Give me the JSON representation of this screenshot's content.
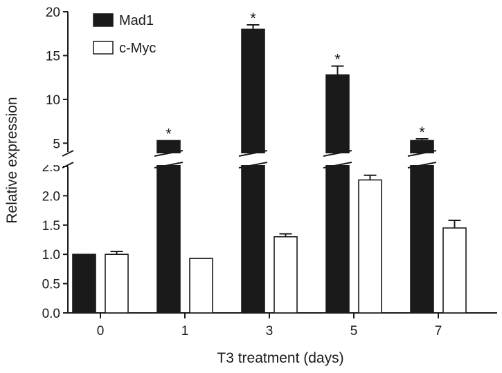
{
  "chart_data": {
    "type": "bar",
    "title": "",
    "xlabel": "T3 treatment (days)",
    "ylabel": "Relative expression",
    "categories": [
      "0",
      "1",
      "3",
      "5",
      "7"
    ],
    "series": [
      {
        "name": "Mad1",
        "fill": "#1a1a1a",
        "values": [
          1.0,
          5.3,
          18.0,
          12.8,
          5.3
        ],
        "errors": [
          0.0,
          0.0,
          0.5,
          1.0,
          0.2
        ],
        "significance": [
          "",
          "*",
          "*",
          "*",
          "*"
        ]
      },
      {
        "name": "c-Myc",
        "fill": "#ffffff",
        "values": [
          1.0,
          0.93,
          1.3,
          2.27,
          1.45
        ],
        "errors": [
          0.05,
          0.0,
          0.05,
          0.08,
          0.13
        ],
        "significance": [
          "",
          "",
          "",
          "",
          ""
        ]
      }
    ],
    "axis_break": true,
    "y_lower": {
      "ylim": [
        0,
        2.5
      ],
      "ticks": [
        "0.0",
        "0.5",
        "1.0",
        "1.5",
        "2.0",
        "2.5"
      ]
    },
    "y_upper": {
      "ylim": [
        4,
        20
      ],
      "ticks": [
        "5",
        "10",
        "15",
        "20"
      ]
    },
    "legend_position": "top-left",
    "grid": false
  }
}
